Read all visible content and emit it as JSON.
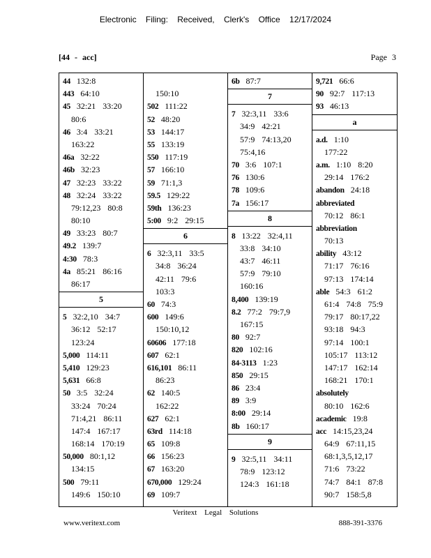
{
  "header": {
    "filing_stamp": "Electronic Filing: Received, Clerk's Office 12/17/2024",
    "range": "[44 - acc]",
    "page": "Page 3"
  },
  "columns": [
    [
      {
        "term": "44",
        "refs": [
          "132:8"
        ]
      },
      {
        "term": "443",
        "refs": [
          "64:10"
        ]
      },
      {
        "term": "45",
        "refs": [
          "32:21 33:20",
          "80:6"
        ]
      },
      {
        "term": "46",
        "refs": [
          "3:4 33:21",
          "163:22"
        ]
      },
      {
        "term": "46a",
        "refs": [
          "32:22"
        ]
      },
      {
        "term": "46b",
        "refs": [
          "32:23"
        ]
      },
      {
        "term": "47",
        "refs": [
          "32:23 33:22"
        ]
      },
      {
        "term": "48",
        "refs": [
          "32:24 33:22",
          "79:12,23 80:8",
          "80:10"
        ]
      },
      {
        "term": "49",
        "refs": [
          "33:23 80:7"
        ]
      },
      {
        "term": "49.2",
        "refs": [
          "139:7"
        ]
      },
      {
        "term": "4:30",
        "refs": [
          "78:3"
        ]
      },
      {
        "term": "4a",
        "refs": [
          "85:21 86:16",
          "86:17"
        ]
      },
      {
        "section": "5"
      },
      {
        "term": "5",
        "refs": [
          "32:2,10 34:7",
          "36:12 52:17",
          "123:24"
        ]
      },
      {
        "term": "5,000",
        "refs": [
          "114:11"
        ]
      },
      {
        "term": "5,410",
        "refs": [
          "129:23"
        ]
      },
      {
        "term": "5,631",
        "refs": [
          "66:8"
        ]
      },
      {
        "term": "50",
        "refs": [
          "3:5 32:24",
          "33:24 70:24",
          "71:4,21 86:11",
          "147:4 167:17",
          "168:14 170:19"
        ]
      },
      {
        "term": "50,000",
        "refs": [
          "80:1,12",
          "134:15"
        ]
      },
      {
        "term": "500",
        "refs": [
          "79:11",
          "149:6 150:10"
        ]
      }
    ],
    [
      {
        "term": "",
        "refs": [
          "",
          "150:10"
        ]
      },
      {
        "term": "502",
        "refs": [
          "111:22"
        ]
      },
      {
        "term": "52",
        "refs": [
          "48:20"
        ]
      },
      {
        "term": "53",
        "refs": [
          "144:17"
        ]
      },
      {
        "term": "55",
        "refs": [
          "133:19"
        ]
      },
      {
        "term": "550",
        "refs": [
          "117:19"
        ]
      },
      {
        "term": "57",
        "refs": [
          "166:10"
        ]
      },
      {
        "term": "59",
        "refs": [
          "71:1,3"
        ]
      },
      {
        "term": "59.5",
        "refs": [
          "129:22"
        ]
      },
      {
        "term": "59th",
        "refs": [
          "136:23"
        ]
      },
      {
        "term": "5:00",
        "refs": [
          "9:2 29:15"
        ]
      },
      {
        "section": "6"
      },
      {
        "term": "6",
        "refs": [
          "32:3,11 33:5",
          "34:8 36:24",
          "42:11 79:6",
          "103:3"
        ]
      },
      {
        "term": "60",
        "refs": [
          "74:3"
        ]
      },
      {
        "term": "600",
        "refs": [
          "149:6",
          "150:10,12"
        ]
      },
      {
        "term": "60606",
        "refs": [
          "177:18"
        ]
      },
      {
        "term": "607",
        "refs": [
          "62:1"
        ]
      },
      {
        "term": "616,101",
        "refs": [
          "86:11",
          "86:23"
        ]
      },
      {
        "term": "62",
        "refs": [
          "140:5",
          "162:22"
        ]
      },
      {
        "term": "627",
        "refs": [
          "62:1"
        ]
      },
      {
        "term": "63rd",
        "refs": [
          "114:18"
        ]
      },
      {
        "term": "65",
        "refs": [
          "109:8"
        ]
      },
      {
        "term": "66",
        "refs": [
          "156:23"
        ]
      },
      {
        "term": "67",
        "refs": [
          "163:20"
        ]
      },
      {
        "term": "670,000",
        "refs": [
          "129:24"
        ]
      },
      {
        "term": "69",
        "refs": [
          "109:7"
        ]
      }
    ],
    [
      {
        "term": "6b",
        "refs": [
          "87:7"
        ]
      },
      {
        "section": "7"
      },
      {
        "term": "7",
        "refs": [
          "32:3,11 33:6",
          "34:9 42:21",
          "57:9 74:13,20",
          "75:4,16"
        ]
      },
      {
        "term": "70",
        "refs": [
          "3:6 107:1"
        ]
      },
      {
        "term": "76",
        "refs": [
          "130:6"
        ]
      },
      {
        "term": "78",
        "refs": [
          "109:6"
        ]
      },
      {
        "term": "7a",
        "refs": [
          "156:17"
        ]
      },
      {
        "section": "8"
      },
      {
        "term": "8",
        "refs": [
          "13:22 32:4,11",
          "33:8 34:10",
          "43:7 46:11",
          "57:9 79:10",
          "160:16"
        ]
      },
      {
        "term": "8,400",
        "refs": [
          "139:19"
        ]
      },
      {
        "term": "8.2",
        "refs": [
          "77:2 79:7,9",
          "167:15"
        ]
      },
      {
        "term": "80",
        "refs": [
          "92:7"
        ]
      },
      {
        "term": "820",
        "refs": [
          "102:16"
        ]
      },
      {
        "term": "84-3113",
        "refs": [
          "1:23"
        ]
      },
      {
        "term": "850",
        "refs": [
          "29:15"
        ]
      },
      {
        "term": "86",
        "refs": [
          "23:4"
        ]
      },
      {
        "term": "89",
        "refs": [
          "3:9"
        ]
      },
      {
        "term": "8:00",
        "refs": [
          "29:14"
        ]
      },
      {
        "term": "8b",
        "refs": [
          "160:17"
        ]
      },
      {
        "section": "9"
      },
      {
        "term": "9",
        "refs": [
          "32:5,11 34:11",
          "78:9 123:12",
          "124:3 161:18"
        ]
      }
    ],
    [
      {
        "term": "9,721",
        "refs": [
          "66:6"
        ]
      },
      {
        "term": "90",
        "refs": [
          "92:7 117:13"
        ]
      },
      {
        "term": "93",
        "refs": [
          "46:13"
        ]
      },
      {
        "section": "a"
      },
      {
        "term": "a.d.",
        "refs": [
          "1:10",
          "177:22"
        ]
      },
      {
        "term": "a.m.",
        "refs": [
          "1:10 8:20",
          "29:14 176:2"
        ]
      },
      {
        "term": "abandon",
        "refs": [
          "24:18"
        ]
      },
      {
        "term": "abbreviated",
        "refs": [
          "",
          "70:12 86:1"
        ]
      },
      {
        "term": "abbreviation",
        "refs": [
          "",
          "70:13"
        ]
      },
      {
        "term": "ability",
        "refs": [
          "43:12",
          "71:17 76:16",
          "97:13 174:14"
        ]
      },
      {
        "term": "able",
        "refs": [
          "54:3 61:2",
          "61:4 74:8 75:9",
          "79:17 80:17,22",
          "93:18 94:3",
          "97:14 100:1",
          "105:17 113:12",
          "147:17 162:14",
          "168:21 170:1"
        ]
      },
      {
        "term": "absolutely",
        "refs": [
          "",
          "80:10 162:6"
        ]
      },
      {
        "term": "academic",
        "refs": [
          "19:8"
        ]
      },
      {
        "term": "acc",
        "refs": [
          "14:15,23,24",
          "64:9 67:11,15",
          "68:1,3,5,12,17",
          "71:6 73:22",
          "74:7 84:1 87:8",
          "90:7 158:5,8"
        ]
      }
    ]
  ],
  "footer": {
    "company": "Veritext Legal Solutions",
    "website": "www.veritext.com",
    "phone": "888-391-3376"
  }
}
